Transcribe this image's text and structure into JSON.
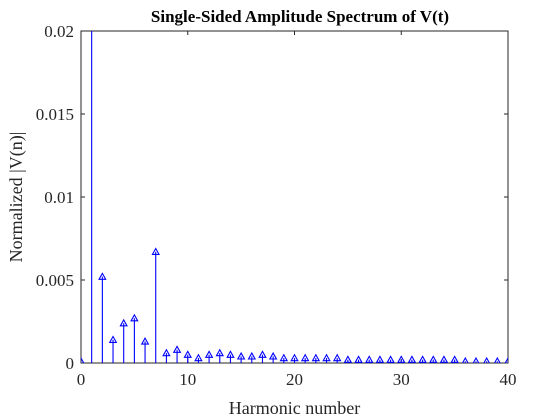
{
  "chart_data": {
    "type": "stem",
    "title": "Single-Sided Amplitude Spectrum of V(t)",
    "xlabel": "Harmonic number",
    "ylabel": "Normalized |V(n)|",
    "xlim": [
      0,
      40
    ],
    "ylim": [
      0,
      0.02
    ],
    "xticks": [
      0,
      10,
      20,
      30,
      40
    ],
    "xtick_labels": [
      "0",
      "10",
      "20",
      "30",
      "40"
    ],
    "yticks": [
      0,
      0.005,
      0.01,
      0.015,
      0.02
    ],
    "ytick_labels": [
      "0",
      "0.005",
      "0.01",
      "0.015",
      "0.02"
    ],
    "grid": false,
    "marker": "triangle",
    "series_color": "#0000ff",
    "x": [
      0,
      1,
      2,
      3,
      4,
      5,
      6,
      7,
      8,
      9,
      10,
      11,
      12,
      13,
      14,
      15,
      16,
      17,
      18,
      19,
      20,
      21,
      22,
      23,
      24,
      25,
      26,
      27,
      28,
      29,
      30,
      31,
      32,
      33,
      34,
      35,
      36,
      37,
      38,
      39,
      40
    ],
    "values": [
      0.0001,
      0.0215,
      0.0052,
      0.0014,
      0.0024,
      0.0027,
      0.0013,
      0.0067,
      0.0006,
      0.0008,
      0.0005,
      0.0003,
      0.0005,
      0.0006,
      0.0005,
      0.0004,
      0.0004,
      0.0005,
      0.0004,
      0.0003,
      0.0003,
      0.0003,
      0.0003,
      0.0003,
      0.0003,
      0.0002,
      0.0002,
      0.0002,
      0.0002,
      0.0002,
      0.0002,
      0.0002,
      0.0002,
      0.0002,
      0.0002,
      0.0002,
      0.0001,
      0.0001,
      0.0001,
      0.0001,
      0.0001
    ]
  }
}
